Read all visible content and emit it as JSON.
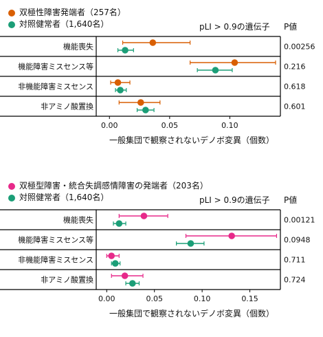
{
  "chart_data": [
    {
      "type": "forest",
      "legend": [
        {
          "label": "双極性障害発端者（257名）",
          "color": "#d95f02"
        },
        {
          "label": "対照健常者（1,640名）",
          "color": "#1b9e77"
        }
      ],
      "subtitle": "pLI > 0.9の遺伝子",
      "pvalue_header": "P値",
      "categories": [
        "機能喪失",
        "機能障害ミスセンス等",
        "非機能障害ミスセンス",
        "非アミノ酸置換"
      ],
      "series": [
        {
          "name": "双極性障害発端者（257名）",
          "color": "#d95f02",
          "estimates": [
            0.036,
            0.104,
            0.007,
            0.026
          ],
          "ci_low": [
            0.011,
            0.067,
            0.001,
            0.008
          ],
          "ci_high": [
            0.067,
            0.138,
            0.017,
            0.042
          ]
        },
        {
          "name": "対照健常者（1,640名）",
          "color": "#1b9e77",
          "estimates": [
            0.013,
            0.088,
            0.009,
            0.03
          ],
          "ci_low": [
            0.007,
            0.073,
            0.005,
            0.023
          ],
          "ci_high": [
            0.02,
            0.102,
            0.014,
            0.037
          ]
        }
      ],
      "p_values": [
        "0.00256",
        "0.216",
        "0.618",
        "0.601"
      ],
      "x_ticks": [
        0.0,
        0.05,
        0.1
      ],
      "x_tick_labels": [
        "0.00",
        "0.05",
        "0.10"
      ],
      "xlim": [
        -0.011,
        0.142
      ],
      "xlabel": "一般集団で観察されないデノボ変異（個数）"
    },
    {
      "type": "forest",
      "legend": [
        {
          "label": "双極型障害・統合失調感情障害の発端者（203名）",
          "color": "#e7298a"
        },
        {
          "label": "対照健常者（1,640名）",
          "color": "#1b9e77"
        }
      ],
      "subtitle": "pLI > 0.9の遺伝子",
      "pvalue_header": "P値",
      "categories": [
        "機能喪失",
        "機能障害ミスセンス等",
        "非機能障害ミスセンス",
        "非アミノ酸置換"
      ],
      "series": [
        {
          "name": "双極型障害・統合失調感情障害の発端者（203名）",
          "color": "#e7298a",
          "estimates": [
            0.039,
            0.131,
            0.005,
            0.019
          ],
          "ci_low": [
            0.013,
            0.083,
            0.0,
            0.005
          ],
          "ci_high": [
            0.064,
            0.178,
            0.013,
            0.038
          ]
        },
        {
          "name": "対照健常者（1,640名）",
          "color": "#1b9e77",
          "estimates": [
            0.013,
            0.088,
            0.009,
            0.027
          ],
          "ci_low": [
            0.007,
            0.073,
            0.005,
            0.02
          ],
          "ci_high": [
            0.02,
            0.102,
            0.014,
            0.034
          ]
        }
      ],
      "p_values": [
        "0.00121",
        "0.0948",
        "0.711",
        "0.724"
      ],
      "x_ticks": [
        0.0,
        0.05,
        0.1,
        0.15
      ],
      "x_tick_labels": [
        "0.00",
        "0.05",
        "0.10",
        "0.15"
      ],
      "xlim": [
        -0.011,
        0.182
      ],
      "xlabel": "一般集団で観察されないデノボ変異（個数）"
    }
  ]
}
